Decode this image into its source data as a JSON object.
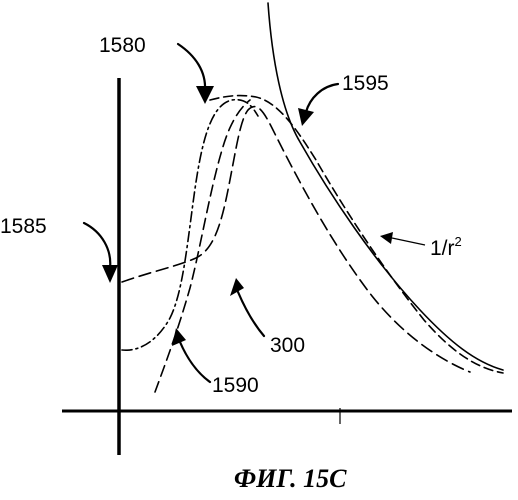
{
  "figure": {
    "caption": "ФИГ. 15С",
    "labels": {
      "l1580": "1580",
      "l1595": "1595",
      "l1585": "1585",
      "l300": "300",
      "l1590": "1590",
      "inverse_square_base": "1/r",
      "inverse_square_exp": "2"
    }
  }
}
